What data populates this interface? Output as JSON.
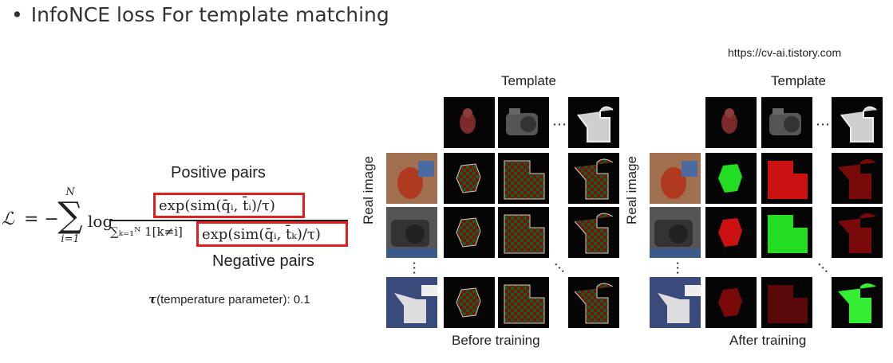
{
  "title": {
    "bullet": "•",
    "text": "InfoNCE loss For template matching"
  },
  "source": "https://cv-ai.tistory.com",
  "formula": {
    "lhs": "ℒ",
    "eq": "= −",
    "sum_top": "N",
    "sum_symbol": "∑",
    "sum_bottom": "i=1",
    "log": "log",
    "numerator": "exp(sim(q̄ᵢ, t̄ᵢ)/τ)",
    "denominator_prefix": "∑ₖ₌₁ᴺ 1[k≠i]",
    "denominator": "exp(sim(q̄ᵢ, t̄ₖ)/τ)"
  },
  "labels": {
    "positive_pairs": "Positive pairs",
    "negative_pairs": "Negative pairs",
    "tau_symbol": "τ",
    "tau_text": "(temperature parameter): 0.1"
  },
  "panels": [
    {
      "header": "Template",
      "side": "Real image",
      "footer": "Before training",
      "dots": "⋯"
    },
    {
      "header": "Template",
      "side": "Real image",
      "footer": "After training",
      "dots": "⋯"
    }
  ],
  "colors": {
    "box": "#e02020",
    "green": "#22dd22",
    "red": "#cc1111",
    "dark_red": "#7a0a0a"
  }
}
